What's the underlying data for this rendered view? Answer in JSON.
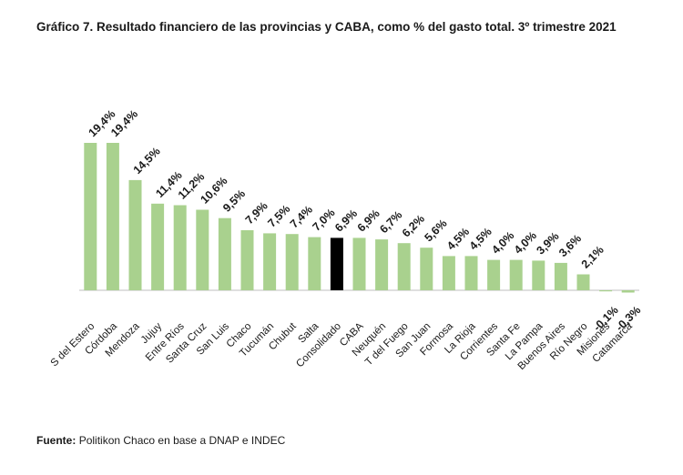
{
  "figure": {
    "title": "Gráfico 7. Resultado financiero de las provincias y CABA, como % del gasto total. 3º trimestre 2021",
    "source_label": "Fuente:",
    "source_text": "Politikon Chaco en base a DNAP e INDEC"
  },
  "colors": {
    "bar": "#a9d18e",
    "highlight": "#000000",
    "axis": "#bfbfbf",
    "text": "#1a1a1a"
  },
  "chart_data": {
    "type": "bar",
    "title": "Gráfico 7. Resultado financiero de las provincias y CABA, como % del gasto total. 3º trimestre 2021",
    "xlabel": "",
    "ylabel": "",
    "ylim": [
      -0.5,
      20
    ],
    "highlight_category": "Consolidado",
    "categories": [
      "S del Estero",
      "Córdoba",
      "Mendoza",
      "Jujuy",
      "Entre Ríos",
      "Santa Cruz",
      "San Luis",
      "Chaco",
      "Tucumán",
      "Chubut",
      "Salta",
      "Consolidado",
      "CABA",
      "Neuquén",
      "T del Fuego",
      "San Juan",
      "Formosa",
      "La Rioja",
      "Corrientes",
      "Santa Fe",
      "La Pampa",
      "Buenos Aires",
      "Río Negro",
      "Misiones",
      "Catamarca"
    ],
    "values": [
      19.4,
      19.4,
      14.5,
      11.4,
      11.2,
      10.6,
      9.5,
      7.9,
      7.5,
      7.4,
      7.0,
      6.9,
      6.9,
      6.7,
      6.2,
      5.6,
      4.5,
      4.5,
      4.0,
      4.0,
      3.9,
      3.6,
      2.1,
      -0.1,
      -0.3
    ],
    "labels": [
      "19,4%",
      "19,4%",
      "14,5%",
      "11,4%",
      "11,2%",
      "10,6%",
      "9,5%",
      "7,9%",
      "7,5%",
      "7,4%",
      "7,0%",
      "6,9%",
      "6,9%",
      "6,7%",
      "6,2%",
      "5,6%",
      "4,5%",
      "4,5%",
      "4,0%",
      "4,0%",
      "3,9%",
      "3,6%",
      "2,1%",
      "-0,1%",
      "-0,3%"
    ]
  }
}
